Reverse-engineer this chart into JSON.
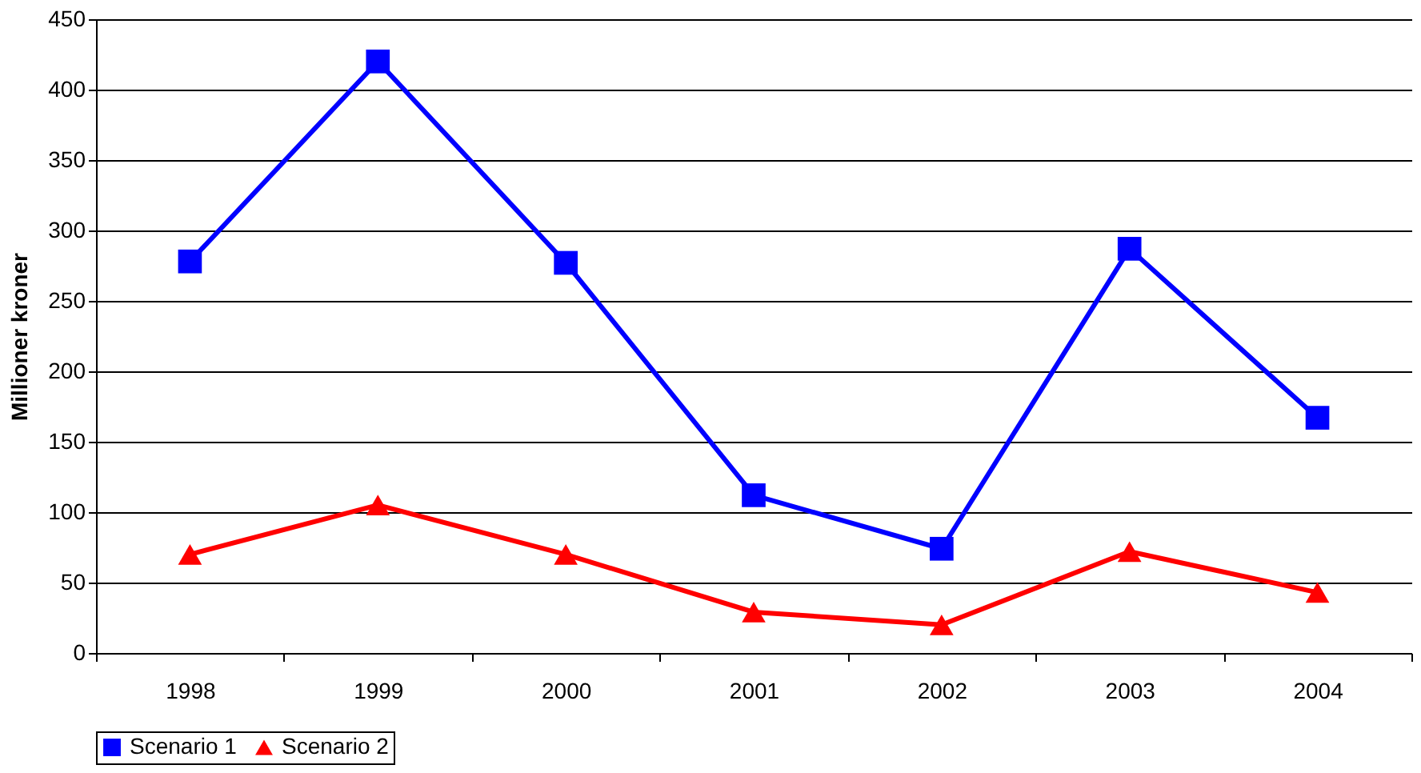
{
  "chart_data": {
    "type": "line",
    "ylabel": "Millioner kroner",
    "categories": [
      "1998",
      "1999",
      "2000",
      "2001",
      "2002",
      "2003",
      "2004"
    ],
    "series": [
      {
        "name": "Scenario 1",
        "color": "#0000ff",
        "marker": "square",
        "values": [
          278,
          420,
          277,
          112,
          74,
          287,
          167
        ]
      },
      {
        "name": "Scenario 2",
        "color": "#ff0000",
        "marker": "triangle",
        "values": [
          70,
          105,
          70,
          29,
          20,
          72,
          43
        ]
      }
    ],
    "ylim": [
      0,
      450
    ],
    "yticks": [
      0,
      50,
      100,
      150,
      200,
      250,
      300,
      350,
      400,
      450
    ],
    "grid": "y",
    "legend": "bottom",
    "line_style": "solid"
  }
}
